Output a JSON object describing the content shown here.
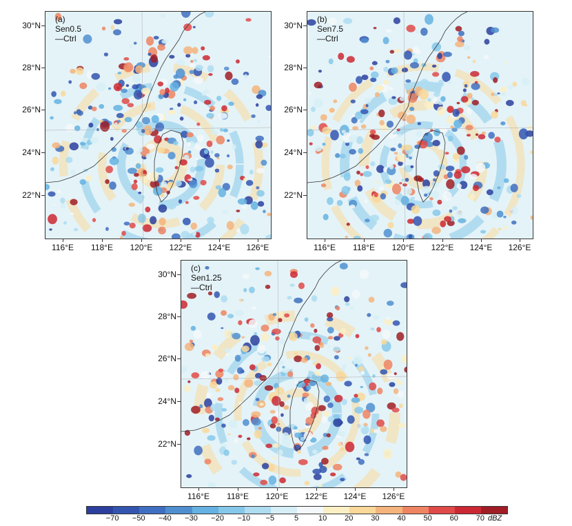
{
  "panels": [
    {
      "label": "(a) Sen0.5—Ctrl"
    },
    {
      "label": "(b) Sen7.5—Ctrl"
    },
    {
      "label": "(c) Sen1.25—Ctrl"
    }
  ],
  "lat_labels": [
    "30°N",
    "28°N",
    "26°N",
    "24°N",
    "22°N"
  ],
  "lon_labels": [
    "116°E",
    "118°E",
    "120°E",
    "122°E",
    "124°E",
    "126°E"
  ],
  "colorbar": {
    "labels": [
      "−70",
      "−50",
      "−40",
      "−30",
      "−20",
      "−10",
      "−5",
      "5",
      "10",
      "20",
      "30",
      "40",
      "50",
      "60",
      "70"
    ],
    "unit": "dBZ",
    "colors": [
      "#2c3f9e",
      "#3355b0",
      "#3f6fc0",
      "#4f8fd0",
      "#64b1e2",
      "#86c8ea",
      "#aedcf0",
      "#d6eef6",
      "#f4f8fa",
      "#fbefc4",
      "#f9d89a",
      "#f4b47c",
      "#ee8462",
      "#e04a48",
      "#cc2833",
      "#a01d26"
    ]
  }
}
